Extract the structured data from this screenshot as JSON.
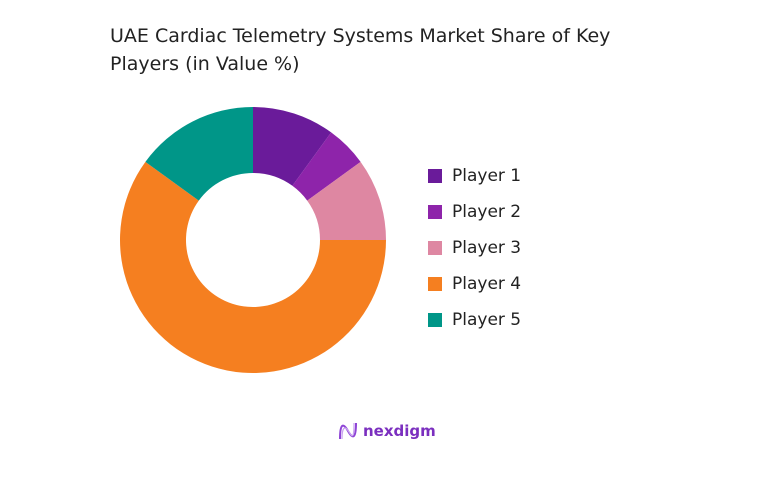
{
  "chart_data": {
    "type": "pie",
    "donut": true,
    "title": "UAE Cardiac Telemetry Systems Market Share of Key Players (in Value %)",
    "categories": [
      "Player 1",
      "Player 2",
      "Player 3",
      "Player 4",
      "Player 5"
    ],
    "values": [
      10,
      5,
      10,
      60,
      15
    ],
    "colors": [
      "#6a1b9a",
      "#8e24aa",
      "#de87a2",
      "#f57f20",
      "#009688"
    ],
    "legend_position": "right"
  },
  "logo": {
    "text": "nexdigm",
    "color": "#7b2fbf"
  }
}
